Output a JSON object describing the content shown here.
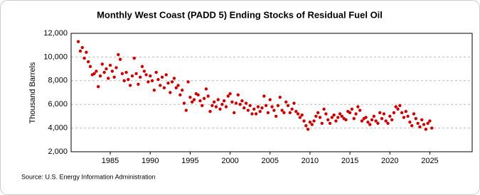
{
  "chart_data": {
    "type": "scatter",
    "title": "Monthly West Coast (PADD 5) Ending Stocks of Residual Fuel Oil",
    "y_label": "Thousand Barrels",
    "source": "Source: U.S. Energy Information Administration",
    "x": [
      1981,
      1981.25,
      1981.5,
      1981.75,
      1982,
      1982.25,
      1982.5,
      1982.75,
      1983,
      1983.25,
      1983.5,
      1983.75,
      1984,
      1984.25,
      1984.5,
      1984.75,
      1985,
      1985.25,
      1985.5,
      1985.75,
      1986,
      1986.25,
      1986.5,
      1986.75,
      1987,
      1987.25,
      1987.5,
      1987.75,
      1988,
      1988.25,
      1988.5,
      1988.75,
      1989,
      1989.25,
      1989.5,
      1989.75,
      1990,
      1990.25,
      1990.5,
      1990.75,
      1991,
      1991.25,
      1991.5,
      1991.75,
      1992,
      1992.25,
      1992.5,
      1992.75,
      1993,
      1993.25,
      1993.5,
      1993.75,
      1994,
      1994.25,
      1994.5,
      1994.75,
      1995,
      1995.25,
      1995.5,
      1995.75,
      1996,
      1996.25,
      1996.5,
      1996.75,
      1997,
      1997.25,
      1997.5,
      1997.75,
      1998,
      1998.25,
      1998.5,
      1998.75,
      1999,
      1999.25,
      1999.5,
      1999.75,
      2000,
      2000.25,
      2000.5,
      2000.75,
      2001,
      2001.25,
      2001.5,
      2001.75,
      2002,
      2002.25,
      2002.5,
      2002.75,
      2003,
      2003.25,
      2003.5,
      2003.75,
      2004,
      2004.25,
      2004.5,
      2004.75,
      2005,
      2005.25,
      2005.5,
      2005.75,
      2006,
      2006.25,
      2006.5,
      2006.75,
      2007,
      2007.25,
      2007.5,
      2007.75,
      2008,
      2008.25,
      2008.5,
      2008.75,
      2009,
      2009.25,
      2009.5,
      2009.75,
      2010,
      2010.25,
      2010.5,
      2010.75,
      2011,
      2011.25,
      2011.5,
      2011.75,
      2012,
      2012.25,
      2012.5,
      2012.75,
      2013,
      2013.25,
      2013.5,
      2013.75,
      2014,
      2014.25,
      2014.5,
      2014.75,
      2015,
      2015.25,
      2015.5,
      2015.75,
      2016,
      2016.25,
      2016.5,
      2016.75,
      2017,
      2017.25,
      2017.5,
      2017.75,
      2018,
      2018.25,
      2018.5,
      2018.75,
      2019,
      2019.25,
      2019.5,
      2019.75,
      2020,
      2020.25,
      2020.5,
      2020.75,
      2021,
      2021.25,
      2021.5,
      2021.75,
      2022,
      2022.25,
      2022.5,
      2022.75,
      2023,
      2023.25,
      2023.5,
      2023.75,
      2024,
      2024.25,
      2024.5,
      2024.75,
      2025,
      2025.25
    ],
    "series": [
      {
        "color": "#cc0000",
        "values": [
          11300,
          10500,
          10800,
          9900,
          10400,
          9600,
          9200,
          8500,
          8600,
          8800,
          7500,
          8400,
          9400,
          8700,
          9000,
          8200,
          9300,
          8800,
          8300,
          9100,
          10200,
          9800,
          8600,
          8000,
          8700,
          8100,
          7600,
          8400,
          9900,
          8600,
          7700,
          8300,
          9200,
          8800,
          8500,
          7900,
          8400,
          8000,
          7200,
          8700,
          8100,
          7600,
          8300,
          7400,
          8500,
          7800,
          7000,
          7900,
          8200,
          7400,
          7600,
          6800,
          7200,
          6100,
          5500,
          7900,
          6600,
          6200,
          6400,
          6900,
          6800,
          6300,
          5900,
          6500,
          7300,
          6700,
          5400,
          5900,
          6200,
          5800,
          6400,
          5600,
          6000,
          6300,
          5800,
          6700,
          6900,
          6200,
          5300,
          6100,
          6800,
          6000,
          6300,
          5700,
          6100,
          5500,
          5900,
          5200,
          5600,
          5200,
          5800,
          5400,
          5700,
          6700,
          5900,
          5300,
          6400,
          5800,
          5500,
          5000,
          5900,
          6600,
          5500,
          5300,
          6200,
          5900,
          5300,
          5600,
          6100,
          5400,
          5200,
          4900,
          5100,
          4600,
          4200,
          3900,
          4500,
          4300,
          4600,
          5000,
          5300,
          4900,
          4400,
          5600,
          5200,
          4700,
          4400,
          4900,
          5100,
          4600,
          4900,
          5200,
          5000,
          4800,
          4700,
          5400,
          5300,
          5600,
          4800,
          5200,
          5800,
          5500,
          4600,
          4800,
          4900,
          4500,
          4300,
          4700,
          5000,
          4600,
          4400,
          5300,
          4800,
          5200,
          4600,
          4400,
          5000,
          4700,
          5300,
          5800,
          5600,
          5900,
          5300,
          4900,
          5400,
          5000,
          4500,
          4200,
          5200,
          4800,
          4400,
          4100,
          4700,
          4300,
          3900,
          4400,
          4600,
          4000
        ]
      }
    ],
    "xlim": [
      1980.1,
      2030.3
    ],
    "xticks": [
      1985,
      1990,
      1995,
      2000,
      2005,
      2010,
      2015,
      2020,
      2025
    ],
    "ylim": [
      2000,
      12000
    ],
    "yticks": [
      {
        "value": 2000,
        "label": "2,000"
      },
      {
        "value": 4000,
        "label": "4,000"
      },
      {
        "value": 6000,
        "label": "6,000"
      },
      {
        "value": 8000,
        "label": "8,000"
      },
      {
        "value": 10000,
        "label": "10,000"
      },
      {
        "value": 12000,
        "label": "12,000"
      }
    ],
    "grid": true
  }
}
